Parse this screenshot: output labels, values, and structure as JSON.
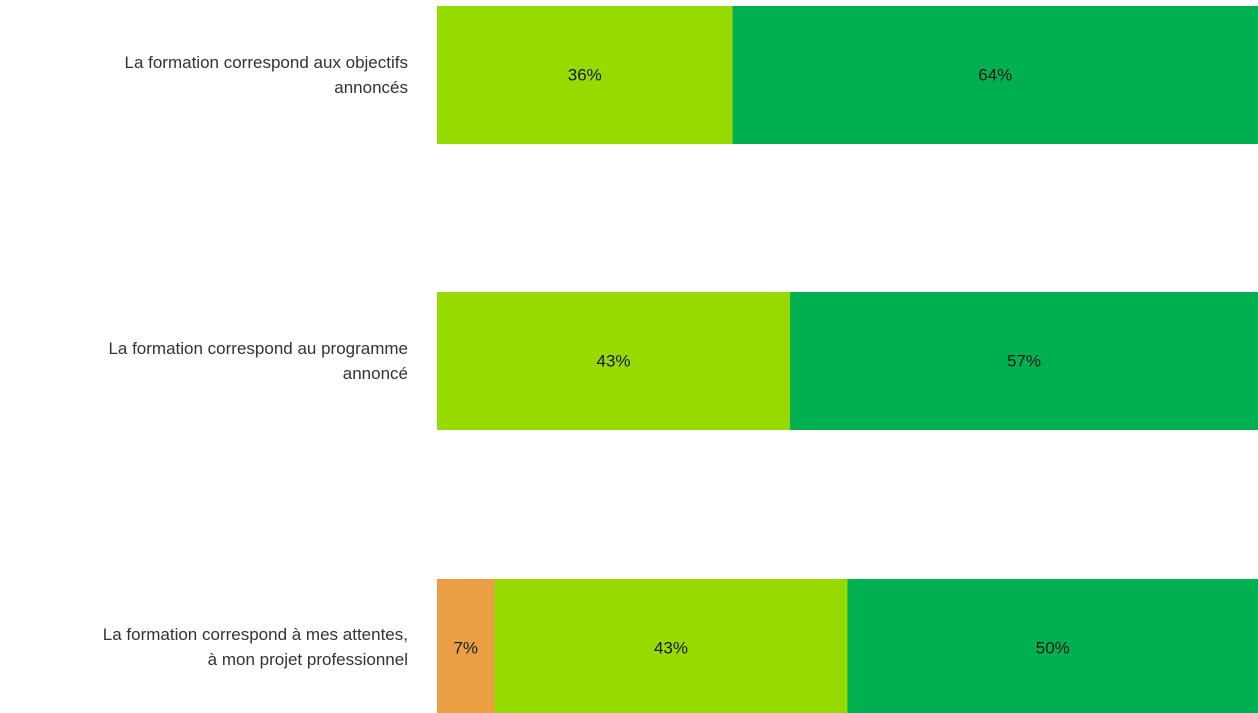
{
  "colors": {
    "orange": "#EB9F45",
    "light_green": "#96DA00",
    "green": "#00AF50",
    "label_text": "#333333",
    "value_text": "#1a1a1a"
  },
  "chart_data": {
    "type": "bar",
    "orientation": "horizontal",
    "stacked": true,
    "normalized": true,
    "categories": [
      [
        "La formation correspond aux objectifs",
        "annoncés"
      ],
      [
        "La formation correspond au programme",
        "annoncé"
      ],
      [
        "La formation correspond à mes attentes,",
        "à mon projet professionnel"
      ]
    ],
    "series": [
      {
        "color": "#EB9F45",
        "values": [
          0,
          0,
          7
        ]
      },
      {
        "color": "#96DA00",
        "values": [
          36,
          43,
          43
        ]
      },
      {
        "color": "#00AF50",
        "values": [
          64,
          57,
          50
        ]
      }
    ],
    "data_labels": [
      [
        "",
        "36%",
        "64%"
      ],
      [
        "",
        "43%",
        "57%"
      ],
      [
        "7%",
        "43%",
        "50%"
      ]
    ],
    "xlim": [
      0,
      100
    ],
    "grid": false,
    "legend": "none"
  }
}
